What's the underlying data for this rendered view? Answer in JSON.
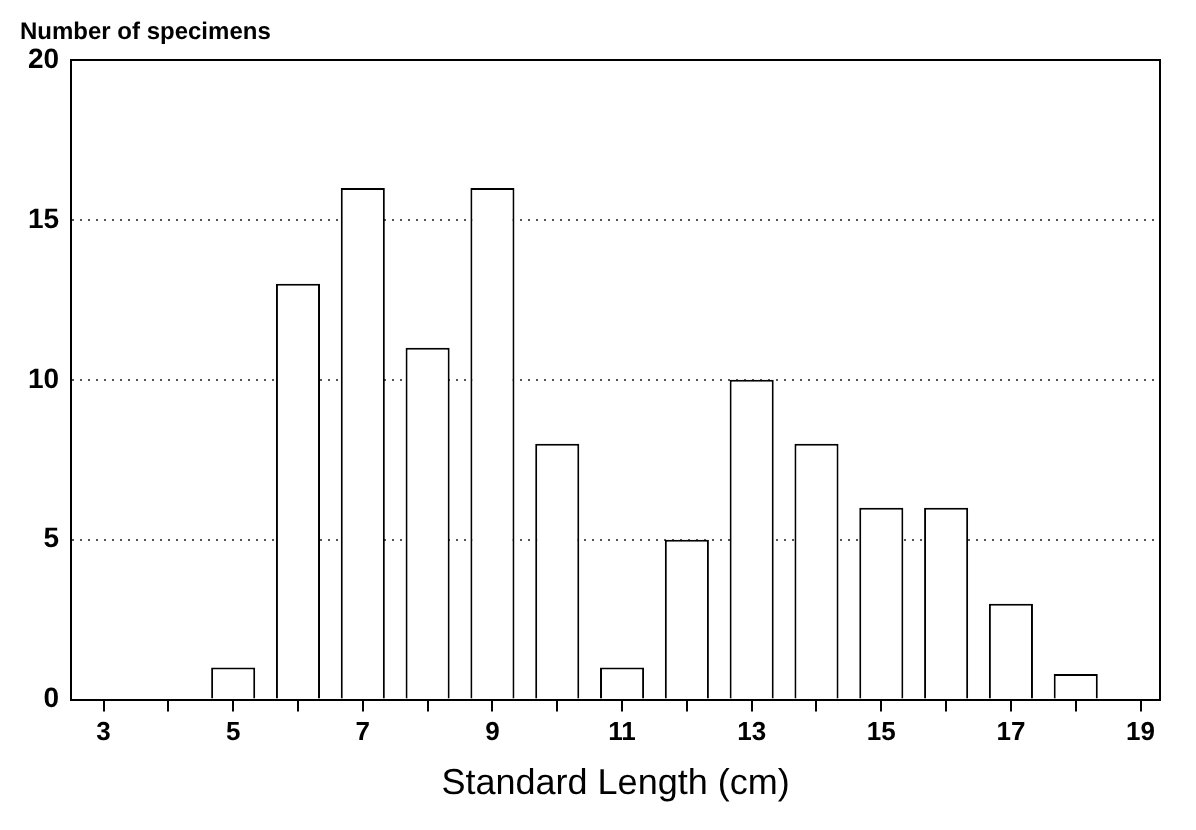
{
  "chart_data": {
    "type": "bar",
    "xlabel": "Standard Length (cm)",
    "ylabel": "Number of specimens",
    "x": [
      5,
      6,
      7,
      8,
      9,
      10,
      11,
      12,
      13,
      14,
      15,
      16,
      17,
      18
    ],
    "values": [
      1,
      13,
      16,
      11,
      16,
      8,
      1,
      5,
      10,
      8,
      6,
      6,
      3,
      0.8
    ],
    "color": "#ffffff",
    "xlim": [
      2.5,
      19.3
    ],
    "xticks": [
      3,
      {
        "value": 4,
        "label": null
      },
      5,
      {
        "value": 6,
        "label": null
      },
      7,
      {
        "value": 8,
        "label": null
      },
      9,
      {
        "value": 10,
        "label": null
      },
      11,
      {
        "value": 12,
        "label": null
      },
      13,
      {
        "value": 14,
        "label": null
      },
      15,
      {
        "value": 16,
        "label": null
      },
      17,
      {
        "value": 18,
        "label": null
      },
      19
    ],
    "ylim": [
      0,
      20
    ],
    "yticks": [
      0,
      5,
      10,
      15,
      20
    ],
    "grid": "y",
    "legend": false
  }
}
